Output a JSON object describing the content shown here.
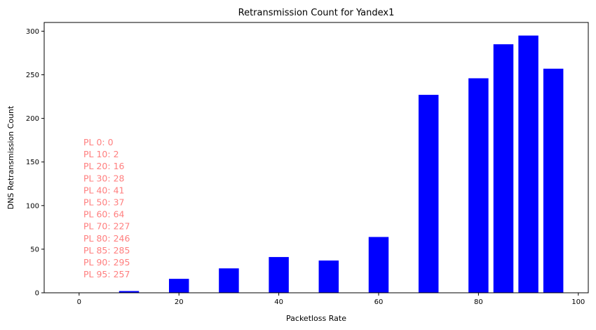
{
  "chart_data": {
    "type": "bar",
    "title": "Retransmission Count for Yandex1",
    "xlabel": "Packetloss Rate",
    "ylabel": "DNS Retransmission Count",
    "x": [
      0,
      10,
      20,
      30,
      40,
      50,
      60,
      70,
      80,
      85,
      90,
      95
    ],
    "values": [
      0,
      2,
      16,
      28,
      41,
      37,
      64,
      227,
      246,
      285,
      295,
      257
    ],
    "bar_width": 4,
    "xlim": [
      -7,
      102
    ],
    "ylim": [
      0,
      310
    ],
    "xticks": [
      0,
      20,
      40,
      60,
      80,
      100
    ],
    "yticks": [
      0,
      50,
      100,
      150,
      200,
      250,
      300
    ],
    "grid": false,
    "bar_color": "#0000ff",
    "annotation_color": "#ff7f7f",
    "annotations": [
      "PL 0: 0",
      "PL 10: 2",
      "PL 20: 16",
      "PL 30: 28",
      "PL 40: 41",
      "PL 50: 37",
      "PL 60: 64",
      "PL 70: 227",
      "PL 80: 246",
      "PL 85: 285",
      "PL 90: 295",
      "PL 95: 257"
    ]
  }
}
